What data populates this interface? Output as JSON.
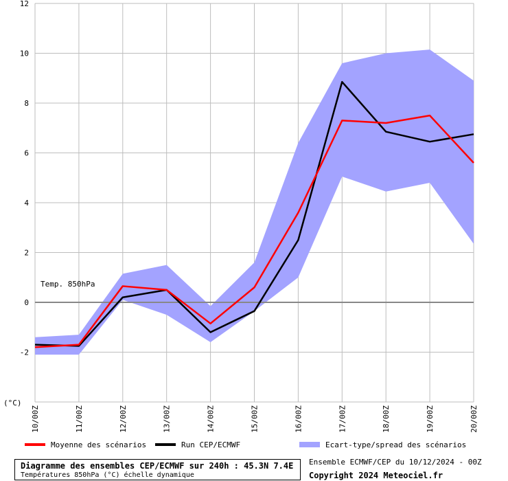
{
  "chart_data": {
    "type": "line",
    "annotation": "Temp. 850hPa",
    "ylabel": "(°C)",
    "ylim": [
      -4,
      12
    ],
    "yticks": [
      -4,
      -2,
      0,
      2,
      4,
      6,
      8,
      10,
      12
    ],
    "ytick_labels": [
      "",
      "-2",
      "0",
      "2",
      "4",
      "6",
      "8",
      "10",
      "12"
    ],
    "categories": [
      "10/00Z",
      "11/00Z",
      "12/00Z",
      "13/00Z",
      "14/00Z",
      "15/00Z",
      "16/00Z",
      "17/00Z",
      "18/00Z",
      "19/00Z",
      "20/00Z"
    ],
    "grid": true,
    "series": [
      {
        "name": "Moyenne des scénarios",
        "kind": "line",
        "color": "#ff0000",
        "values": [
          -1.8,
          -1.7,
          0.65,
          0.5,
          -0.85,
          0.6,
          3.6,
          7.3,
          7.2,
          7.5,
          5.6
        ]
      },
      {
        "name": "Run CEP/ECMWF",
        "kind": "line",
        "color": "#000000",
        "values": [
          -1.7,
          -1.75,
          0.2,
          0.5,
          -1.2,
          -0.35,
          2.5,
          8.85,
          6.85,
          6.45,
          6.75
        ]
      },
      {
        "name": "Ecart-type/spread des scénarios",
        "kind": "band",
        "color": "#a3a3ff",
        "upper": [
          -1.4,
          -1.3,
          1.15,
          1.5,
          -0.15,
          1.6,
          6.4,
          9.6,
          10.0,
          10.15,
          8.9
        ],
        "lower": [
          -2.1,
          -2.1,
          0.1,
          -0.5,
          -1.6,
          -0.35,
          1.0,
          5.05,
          4.45,
          4.8,
          2.35
        ]
      }
    ]
  },
  "legend": [
    {
      "label": "Moyenne des scénarios",
      "color": "#ff0000"
    },
    {
      "label": "Run CEP/ECMWF",
      "color": "#000000"
    },
    {
      "label": "Ecart-type/spread des scénarios",
      "color": "#a3a3ff"
    }
  ],
  "footer": {
    "title": "Diagramme des ensembles CEP/ECMWF sur 240h : 45.3N 7.4E",
    "subtitle": "Températures 850hPa (°C) échelle dynamique",
    "run_info": "Ensemble ECMWF/CEP du 10/12/2024 - 00Z",
    "copyright": "Copyright 2024 Meteociel.fr"
  }
}
